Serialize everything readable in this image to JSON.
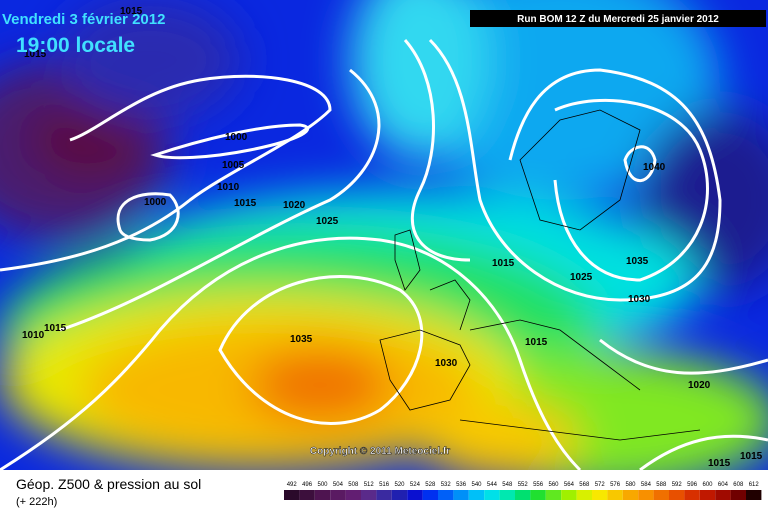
{
  "header": {
    "date": "Vendredi 3 février 2012",
    "time": "19:00 locale",
    "run": "Run BOM 12 Z du Mercredi 25 janvier 2012"
  },
  "copyright": "Copyright © 2011 Meteociel.fr",
  "footer": {
    "title": "Géop. Z500 & pression au sol",
    "lead": "(+ 222h)"
  },
  "scale": {
    "labels": [
      492,
      496,
      500,
      504,
      508,
      512,
      516,
      520,
      524,
      528,
      532,
      536,
      540,
      544,
      548,
      552,
      556,
      560,
      564,
      568,
      572,
      576,
      580,
      584,
      588,
      592,
      596,
      600,
      604,
      608,
      612
    ],
    "colors": [
      "#2a0a2a",
      "#3c0f3c",
      "#4e1450",
      "#5a1a62",
      "#621e72",
      "#5a2a8a",
      "#3a2aa0",
      "#2020b0",
      "#0a10d0",
      "#0030f0",
      "#0060f8",
      "#0090f8",
      "#00c0f8",
      "#00e0e8",
      "#00e8b0",
      "#00e070",
      "#20e030",
      "#60e820",
      "#a0f000",
      "#d8f000",
      "#f8e800",
      "#f8c800",
      "#f8a800",
      "#f89000",
      "#f07000",
      "#e85000",
      "#d83000",
      "#c01800",
      "#a00a00",
      "#700000",
      "#200000"
    ]
  },
  "isobars": [
    "1015",
    "1015",
    "1000",
    "1005",
    "1010",
    "1000",
    "1015",
    "1020",
    "1025",
    "1015",
    "1025",
    "1035",
    "1030",
    "1040",
    "1015",
    "1010",
    "1035",
    "1030",
    "1015",
    "1020",
    "1015",
    "1015"
  ]
}
